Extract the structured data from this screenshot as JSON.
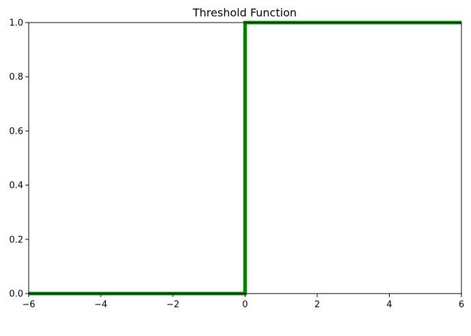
{
  "chart_data": {
    "type": "line",
    "title": "Threshold Function",
    "xlabel": "",
    "ylabel": "",
    "xlim": [
      -6,
      6
    ],
    "ylim": [
      0,
      1
    ],
    "x_ticks": [
      -6,
      -4,
      -2,
      0,
      2,
      4,
      6
    ],
    "x_tick_labels": [
      "−6",
      "−4",
      "−2",
      "0",
      "2",
      "4",
      "6"
    ],
    "y_ticks": [
      0,
      0.2,
      0.4,
      0.6,
      0.8,
      1.0
    ],
    "y_tick_labels": [
      "0.0",
      "0.2",
      "0.4",
      "0.6",
      "0.8",
      "1.0"
    ],
    "grid": false,
    "series": [
      {
        "color": "#008000",
        "points": [
          [
            -6,
            0
          ],
          [
            0,
            0
          ],
          [
            0,
            1
          ],
          [
            6,
            1
          ]
        ]
      }
    ]
  }
}
